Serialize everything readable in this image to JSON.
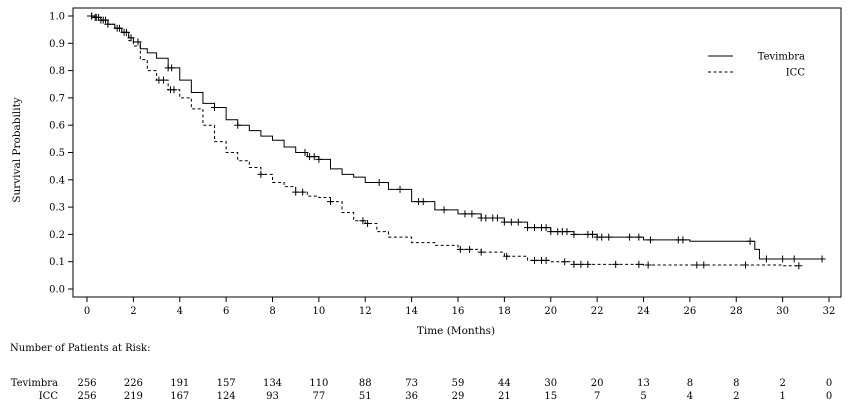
{
  "chart_data": {
    "type": "line",
    "title": "",
    "xlabel": "Time (Months)",
    "ylabel": "Survival Probability",
    "xlim": [
      0,
      32
    ],
    "ylim": [
      0.0,
      1.0
    ],
    "xticks": [
      0,
      2,
      4,
      6,
      8,
      10,
      12,
      14,
      16,
      18,
      20,
      22,
      24,
      26,
      28,
      30,
      32
    ],
    "yticks": [
      0.0,
      0.1,
      0.2,
      0.3,
      0.4,
      0.5,
      0.6,
      0.7,
      0.8,
      0.9,
      1.0
    ],
    "xtick_labels": [
      "0",
      "2",
      "4",
      "6",
      "8",
      "10",
      "12",
      "14",
      "16",
      "18",
      "20",
      "22",
      "24",
      "26",
      "28",
      "30",
      "32"
    ],
    "ytick_labels": [
      "0.0",
      "0.1",
      "0.2",
      "0.3",
      "0.4",
      "0.5",
      "0.6",
      "0.7",
      "0.8",
      "0.9",
      "1.0"
    ],
    "grid": false,
    "legend_position": "top-right",
    "series": [
      {
        "name": "Tevimbra",
        "style": "solid",
        "x": [
          0,
          0.3,
          0.6,
          0.9,
          1.2,
          1.5,
          1.8,
          2.0,
          2.3,
          2.6,
          3.0,
          3.5,
          4.0,
          4.5,
          5.0,
          5.5,
          6.0,
          6.5,
          7.0,
          7.5,
          8.0,
          8.5,
          9.0,
          9.5,
          10.0,
          10.5,
          11.0,
          11.5,
          12.0,
          13.0,
          14.0,
          15.0,
          16.0,
          17.0,
          18.0,
          19.0,
          20.0,
          21.0,
          22.0,
          24.0,
          26.0,
          28.0,
          28.6,
          28.8,
          29.0,
          30.0,
          31.7
        ],
        "y": [
          1.0,
          0.995,
          0.985,
          0.97,
          0.955,
          0.94,
          0.92,
          0.905,
          0.88,
          0.865,
          0.845,
          0.81,
          0.765,
          0.72,
          0.68,
          0.665,
          0.62,
          0.6,
          0.58,
          0.56,
          0.545,
          0.52,
          0.5,
          0.485,
          0.475,
          0.44,
          0.42,
          0.41,
          0.39,
          0.365,
          0.32,
          0.29,
          0.275,
          0.26,
          0.245,
          0.225,
          0.21,
          0.2,
          0.19,
          0.18,
          0.175,
          0.175,
          0.175,
          0.145,
          0.11,
          0.11,
          0.11
        ]
      },
      {
        "name": "ICC",
        "style": "dashed",
        "x": [
          0,
          0.3,
          0.6,
          0.9,
          1.2,
          1.5,
          1.8,
          2.0,
          2.3,
          2.6,
          3.0,
          3.5,
          4.0,
          4.5,
          5.0,
          5.5,
          6.0,
          6.5,
          7.0,
          7.5,
          8.0,
          8.5,
          9.0,
          9.5,
          10.0,
          10.5,
          11.0,
          11.5,
          12.0,
          12.5,
          13.0,
          14.0,
          15.0,
          16.0,
          17.0,
          18.0,
          19.0,
          20.0,
          21.0,
          22.0,
          24.0,
          26.0,
          28.0,
          30.0,
          30.7
        ],
        "y": [
          1.0,
          0.995,
          0.985,
          0.97,
          0.955,
          0.94,
          0.91,
          0.89,
          0.84,
          0.8,
          0.765,
          0.73,
          0.7,
          0.66,
          0.6,
          0.54,
          0.5,
          0.47,
          0.445,
          0.42,
          0.39,
          0.375,
          0.355,
          0.34,
          0.335,
          0.32,
          0.28,
          0.25,
          0.24,
          0.21,
          0.19,
          0.17,
          0.16,
          0.145,
          0.135,
          0.12,
          0.105,
          0.1,
          0.09,
          0.09,
          0.088,
          0.088,
          0.088,
          0.085,
          0.085
        ]
      }
    ],
    "censor_marks": [
      {
        "series": "Tevimbra",
        "x": [
          0.2,
          0.35,
          0.5,
          0.7,
          0.9,
          1.4,
          1.7,
          1.9,
          2.2,
          3.5,
          3.65,
          5.5,
          6.5,
          9.4,
          9.6,
          9.8,
          10.0,
          12.6,
          13.5,
          14.3,
          14.5,
          15.4,
          16.3,
          16.6,
          17.0,
          17.2,
          17.5,
          17.7,
          18.0,
          18.3,
          18.6,
          19.0,
          19.3,
          19.6,
          19.8,
          20.0,
          20.3,
          20.5,
          20.7,
          21.0,
          21.6,
          21.8,
          22.0,
          22.2,
          22.5,
          23.4,
          23.8,
          24.3,
          25.5,
          25.7,
          28.6,
          29.3,
          30.0,
          30.5,
          31.7
        ]
      },
      {
        "series": "ICC",
        "x": [
          0.2,
          0.4,
          0.6,
          0.8,
          1.3,
          1.6,
          3.1,
          3.3,
          3.6,
          3.75,
          7.5,
          9.0,
          9.3,
          10.5,
          11.9,
          12.1,
          16.1,
          16.5,
          17.0,
          18.1,
          19.3,
          19.6,
          19.8,
          20.6,
          21.0,
          21.3,
          21.6,
          22.8,
          23.8,
          24.2,
          26.3,
          26.6,
          28.4,
          30.7
        ]
      }
    ]
  },
  "legend": {
    "entries": [
      {
        "label": "Tevimbra",
        "style": "solid"
      },
      {
        "label": "ICC",
        "style": "dashed"
      }
    ]
  },
  "risk_table": {
    "title": "Number of Patients at Risk:",
    "times": [
      0,
      2,
      4,
      6,
      8,
      10,
      12,
      14,
      16,
      18,
      20,
      22,
      24,
      26,
      28,
      30,
      32
    ],
    "rows": [
      {
        "label": "Tevimbra",
        "values": [
          "256",
          "226",
          "191",
          "157",
          "134",
          "110",
          "88",
          "73",
          "59",
          "44",
          "30",
          "20",
          "13",
          "8",
          "8",
          "2",
          "0"
        ]
      },
      {
        "label": "ICC",
        "values": [
          "256",
          "219",
          "167",
          "124",
          "93",
          "77",
          "51",
          "36",
          "29",
          "21",
          "15",
          "7",
          "5",
          "4",
          "2",
          "1",
          "0"
        ]
      }
    ]
  }
}
